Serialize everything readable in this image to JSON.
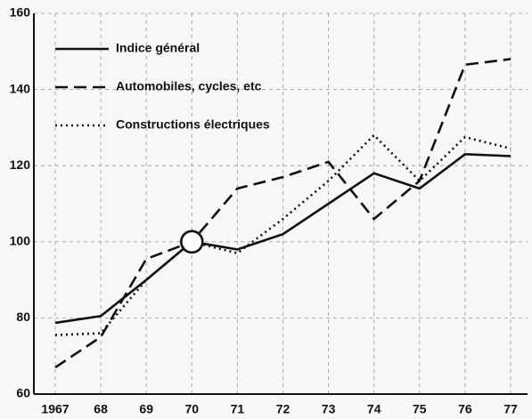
{
  "chart_data": {
    "type": "line",
    "categories": [
      "1967",
      "68",
      "69",
      "70",
      "71",
      "72",
      "73",
      "74",
      "75",
      "76",
      "77"
    ],
    "series": [
      {
        "name": "Indice général",
        "color": "#111111",
        "line_style": "solid",
        "values": [
          78.7,
          80.5,
          90,
          100,
          98,
          102,
          110,
          118,
          114,
          123,
          122.5
        ]
      },
      {
        "name": "Automobiles, cycles, etc",
        "color": "#111111",
        "line_style": "dashed",
        "values": [
          67,
          75,
          95.5,
          100,
          114,
          117,
          121,
          106,
          116,
          146.5,
          148
        ]
      },
      {
        "name": "Constructions électriques",
        "color": "#111111",
        "line_style": "dotted",
        "values": [
          75.5,
          76,
          90,
          100,
          97,
          106,
          116,
          128,
          116,
          127.5,
          124.5
        ]
      }
    ],
    "ylim": [
      60,
      160
    ],
    "yticks": [
      60,
      80,
      100,
      120,
      140,
      160
    ],
    "grid": true,
    "legend": "upper left"
  }
}
